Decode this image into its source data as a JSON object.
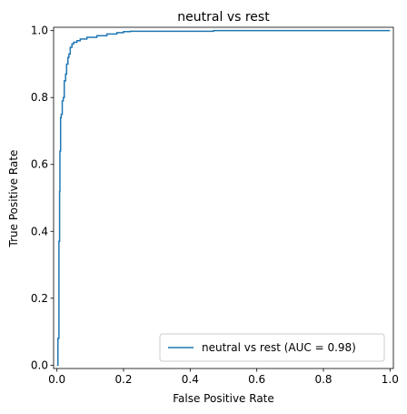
{
  "chart_data": {
    "type": "line",
    "title": "neutral vs rest",
    "xlabel": "False Positive Rate",
    "ylabel": "True Positive Rate",
    "xlim": [
      -0.01,
      1.01
    ],
    "ylim": [
      -0.01,
      1.01
    ],
    "x_ticks": [
      "0.0",
      "0.2",
      "0.4",
      "0.6",
      "0.8",
      "1.0"
    ],
    "y_ticks": [
      "0.0",
      "0.2",
      "0.4",
      "0.6",
      "0.8",
      "1.0"
    ],
    "grid": false,
    "legend_position": "lower-right",
    "series": [
      {
        "name": "neutral vs rest (AUC = 0.98)",
        "color": "#1f77b4",
        "x": [
          0.0,
          0.003,
          0.003,
          0.006,
          0.006,
          0.008,
          0.008,
          0.009,
          0.009,
          0.011,
          0.011,
          0.013,
          0.013,
          0.016,
          0.016,
          0.019,
          0.019,
          0.022,
          0.022,
          0.026,
          0.026,
          0.029,
          0.029,
          0.033,
          0.033,
          0.036,
          0.036,
          0.04,
          0.04,
          0.045,
          0.045,
          0.05,
          0.05,
          0.06,
          0.06,
          0.07,
          0.07,
          0.09,
          0.09,
          0.12,
          0.12,
          0.15,
          0.15,
          0.18,
          0.18,
          0.2,
          0.2,
          0.22,
          0.22,
          0.47,
          0.47,
          1.0
        ],
        "y": [
          0.0,
          0.0,
          0.08,
          0.08,
          0.37,
          0.37,
          0.52,
          0.52,
          0.64,
          0.64,
          0.74,
          0.74,
          0.75,
          0.75,
          0.79,
          0.79,
          0.8,
          0.8,
          0.85,
          0.85,
          0.87,
          0.87,
          0.9,
          0.9,
          0.92,
          0.92,
          0.93,
          0.93,
          0.95,
          0.95,
          0.96,
          0.96,
          0.965,
          0.965,
          0.97,
          0.97,
          0.975,
          0.975,
          0.98,
          0.98,
          0.985,
          0.985,
          0.99,
          0.99,
          0.994,
          0.994,
          0.997,
          0.997,
          0.998,
          0.998,
          1.0,
          1.0
        ]
      }
    ]
  }
}
